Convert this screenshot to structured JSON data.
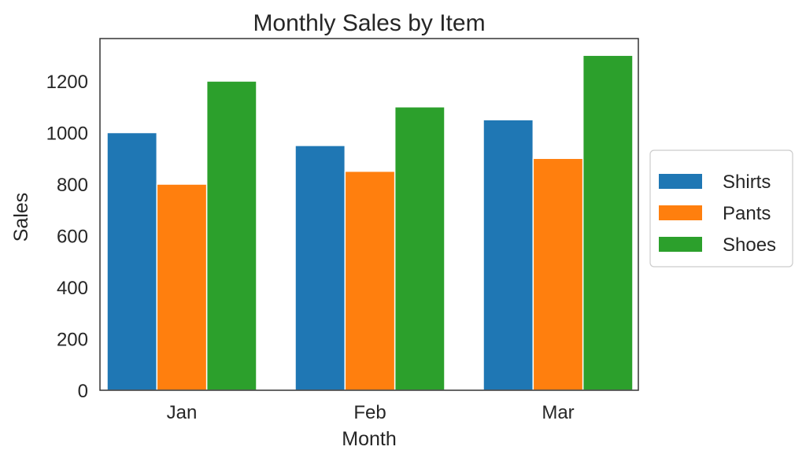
{
  "chart_data": {
    "type": "bar",
    "title": "Monthly Sales by Item",
    "xlabel": "Month",
    "ylabel": "Sales",
    "categories": [
      "Jan",
      "Feb",
      "Mar"
    ],
    "series": [
      {
        "name": "Shirts",
        "values": [
          1000,
          950,
          1050
        ],
        "color": "#1f77b4"
      },
      {
        "name": "Pants",
        "values": [
          800,
          850,
          900
        ],
        "color": "#ff7f0e"
      },
      {
        "name": "Shoes",
        "values": [
          1200,
          1100,
          1300
        ],
        "color": "#2ca02c"
      }
    ],
    "ylim": [
      0,
      1365
    ],
    "yticks": [
      0,
      200,
      400,
      600,
      800,
      1000,
      1200
    ],
    "grid": false,
    "legend_position": "right, outside plot"
  }
}
